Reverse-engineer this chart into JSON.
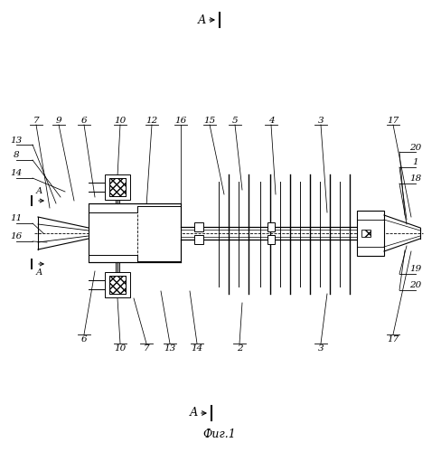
{
  "bg_color": "#ffffff",
  "fig_width": 4.89,
  "fig_height": 5.0,
  "dpi": 100,
  "caption": "Фиг.1",
  "arrow_label": "А"
}
